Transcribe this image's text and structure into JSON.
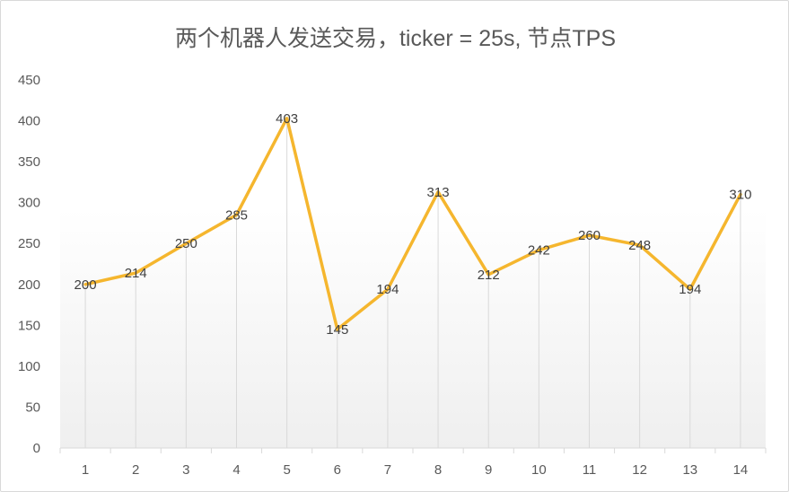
{
  "chart_data": {
    "type": "line",
    "title": "两个机器人发送交易，ticker = 25s, 节点TPS",
    "x": [
      "1",
      "2",
      "3",
      "4",
      "5",
      "6",
      "7",
      "8",
      "9",
      "10",
      "11",
      "12",
      "13",
      "14"
    ],
    "series": [
      {
        "values": [
          200,
          214,
          250,
          285,
          403,
          145,
          194,
          313,
          212,
          242,
          260,
          248,
          194,
          310
        ],
        "color": "#f5b62e"
      }
    ],
    "y_ticks": [
      "0",
      "50",
      "100",
      "150",
      "200",
      "250",
      "300",
      "350",
      "400",
      "450"
    ],
    "ylim": [
      0,
      450
    ],
    "grid": "vertical drop lines",
    "legend": "none",
    "data_labels": true,
    "colors": {
      "line": "#f5b62e",
      "drop_line": "#d9d9d9",
      "background_gradient_bottom": "#f2f2f2"
    }
  }
}
